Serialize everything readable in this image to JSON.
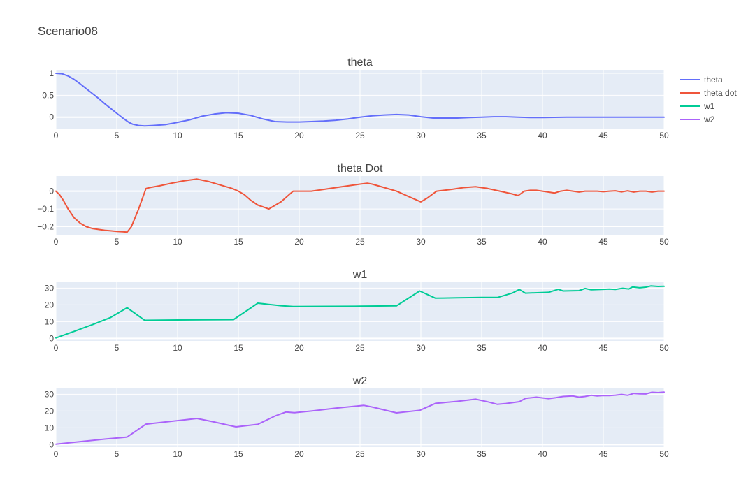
{
  "chart_data": {
    "type": "line",
    "title": "Scenario08",
    "legend": {
      "placement": "top-right",
      "items": [
        {
          "name": "theta",
          "color": "#636efa"
        },
        {
          "name": "theta dot",
          "color": "#ef553b"
        },
        {
          "name": "w1",
          "color": "#00cc96"
        },
        {
          "name": "w2",
          "color": "#ab63fa"
        }
      ]
    },
    "xlim": [
      0,
      50
    ],
    "xticks": [
      0,
      5,
      10,
      15,
      20,
      25,
      30,
      35,
      40,
      45,
      50
    ],
    "subplots": [
      {
        "title": "theta",
        "series_name": "theta",
        "color": "#636efa",
        "ylim": [
          -0.26,
          1.08
        ],
        "yticks": [
          0,
          0.5,
          1
        ],
        "yticklabels": [
          "0",
          "0.5",
          "1"
        ],
        "x": [
          0,
          0.5,
          1,
          1.5,
          2,
          2.5,
          3,
          3.5,
          4,
          4.5,
          5,
          5.5,
          6,
          6.3,
          6.8,
          7.3,
          8,
          9,
          10,
          11,
          12,
          13,
          14,
          15,
          16,
          17,
          18,
          19,
          20,
          21,
          22,
          23,
          24,
          25,
          26,
          27,
          28,
          29,
          30,
          31,
          32,
          33,
          34,
          35,
          36,
          37,
          38,
          39,
          40,
          42,
          44,
          46,
          48,
          50
        ],
        "y": [
          1.0,
          0.99,
          0.94,
          0.86,
          0.76,
          0.65,
          0.54,
          0.43,
          0.31,
          0.2,
          0.09,
          -0.02,
          -0.12,
          -0.16,
          -0.19,
          -0.2,
          -0.19,
          -0.17,
          -0.12,
          -0.06,
          0.02,
          0.07,
          0.1,
          0.09,
          0.04,
          -0.04,
          -0.1,
          -0.11,
          -0.11,
          -0.1,
          -0.09,
          -0.07,
          -0.04,
          0.0,
          0.03,
          0.05,
          0.06,
          0.05,
          0.01,
          -0.02,
          -0.02,
          -0.02,
          -0.01,
          0.0,
          0.01,
          0.01,
          0.0,
          -0.01,
          -0.01,
          0.0,
          0.0,
          0.0,
          0.0,
          0.0
        ]
      },
      {
        "title": "theta Dot",
        "series_name": "theta dot",
        "color": "#ef553b",
        "ylim": [
          -0.245,
          0.085
        ],
        "yticks": [
          0,
          -0.1,
          -0.2
        ],
        "yticklabels": [
          "0",
          "−0.1",
          "−0.2"
        ],
        "x": [
          0,
          0.3,
          0.6,
          1,
          1.5,
          2,
          2.5,
          3,
          3.5,
          4,
          4.5,
          5,
          5.5,
          5.85,
          6.2,
          6.8,
          7.4,
          7.7,
          8.5,
          9.5,
          10.5,
          11.6,
          12.5,
          13.5,
          14.5,
          15,
          15.5,
          16,
          16.6,
          17.5,
          18.5,
          19,
          19.5,
          20,
          21,
          22,
          23,
          24,
          25,
          25.6,
          26,
          27,
          28,
          29,
          30,
          30.5,
          31.3,
          32.5,
          33.5,
          34.5,
          35.5,
          36.5,
          37.5,
          38,
          38.5,
          39,
          39.5,
          40,
          41,
          41.5,
          42,
          42.5,
          43,
          43.5,
          44,
          44.5,
          45,
          45.5,
          46,
          46.5,
          47,
          47.5,
          48,
          48.5,
          49,
          49.5,
          50
        ],
        "y": [
          0.0,
          -0.02,
          -0.05,
          -0.1,
          -0.15,
          -0.18,
          -0.2,
          -0.21,
          -0.215,
          -0.22,
          -0.223,
          -0.226,
          -0.228,
          -0.23,
          -0.2,
          -0.1,
          0.015,
          0.02,
          0.03,
          0.045,
          0.058,
          0.068,
          0.055,
          0.035,
          0.015,
          0.0,
          -0.02,
          -0.05,
          -0.078,
          -0.1,
          -0.06,
          -0.03,
          0.0,
          0.0,
          0.0,
          0.01,
          0.02,
          0.03,
          0.04,
          0.045,
          0.04,
          0.02,
          0.0,
          -0.03,
          -0.06,
          -0.04,
          0.0,
          0.01,
          0.02,
          0.025,
          0.015,
          0.0,
          -0.015,
          -0.025,
          0.0,
          0.005,
          0.005,
          0.0,
          -0.01,
          0.0,
          0.005,
          0.0,
          -0.005,
          0.0,
          0.0,
          0.0,
          -0.003,
          0.0,
          0.002,
          -0.004,
          0.002,
          -0.005,
          0.0,
          0.0,
          -0.005,
          0.0,
          0.0
        ]
      },
      {
        "title": "w1",
        "series_name": "w1",
        "color": "#00cc96",
        "ylim": [
          -1.5,
          33.5
        ],
        "yticks": [
          0,
          10,
          20,
          30
        ],
        "yticklabels": [
          "0",
          "10",
          "20",
          "30"
        ],
        "x": [
          0,
          1.5,
          3,
          4.5,
          5.85,
          7.3,
          10,
          12,
          14.6,
          16.6,
          18.5,
          19.5,
          21,
          25,
          28,
          29.9,
          31.2,
          33,
          35,
          36.3,
          37.5,
          38.1,
          38.6,
          40.5,
          41.3,
          41.7,
          43,
          43.5,
          44,
          45,
          45.5,
          46,
          46.3,
          46.6,
          47.1,
          47.4,
          48,
          48.5,
          48.9,
          49.5,
          50
        ],
        "y": [
          0.3,
          4.2,
          8.2,
          12.5,
          18.3,
          10.8,
          11.0,
          11.1,
          11.2,
          21.0,
          19.5,
          19.0,
          19.1,
          19.2,
          19.4,
          28.3,
          24.0,
          24.2,
          24.4,
          24.4,
          27.0,
          29.2,
          27.0,
          27.5,
          29.3,
          28.3,
          28.5,
          29.8,
          29.0,
          29.3,
          29.4,
          29.2,
          29.6,
          29.9,
          29.5,
          30.7,
          30.2,
          30.6,
          31.3,
          31.0,
          31.1
        ]
      },
      {
        "title": "w2",
        "series_name": "w2",
        "color": "#ab63fa",
        "ylim": [
          -1.5,
          33.5
        ],
        "yticks": [
          0,
          10,
          20,
          30
        ],
        "yticklabels": [
          "0",
          "10",
          "20",
          "30"
        ],
        "x": [
          0,
          2,
          4,
          5.85,
          7.4,
          9,
          11.6,
          13,
          14.8,
          16.6,
          18,
          18.9,
          19.6,
          21,
          23,
          25.3,
          26,
          28,
          29.9,
          31.2,
          33,
          34.5,
          35.5,
          36.3,
          37,
          38.1,
          38.6,
          39.5,
          40.5,
          41.1,
          41.7,
          42.5,
          43,
          43.5,
          44,
          44.5,
          45,
          45.5,
          46,
          46.5,
          47,
          47.5,
          48,
          48.5,
          49,
          49.5,
          50
        ],
        "y": [
          0.3,
          1.8,
          3.3,
          4.5,
          12.2,
          13.5,
          15.6,
          13.5,
          10.6,
          12.1,
          17.0,
          19.4,
          19.0,
          20.0,
          21.7,
          23.4,
          22.4,
          18.9,
          20.4,
          24.6,
          25.8,
          27.1,
          25.5,
          24.0,
          24.5,
          25.6,
          27.6,
          28.3,
          27.4,
          28.0,
          28.7,
          29.0,
          28.3,
          28.7,
          29.4,
          29.0,
          29.3,
          29.2,
          29.5,
          29.9,
          29.4,
          30.5,
          30.3,
          30.2,
          31.2,
          31.0,
          31.3
        ]
      }
    ]
  }
}
